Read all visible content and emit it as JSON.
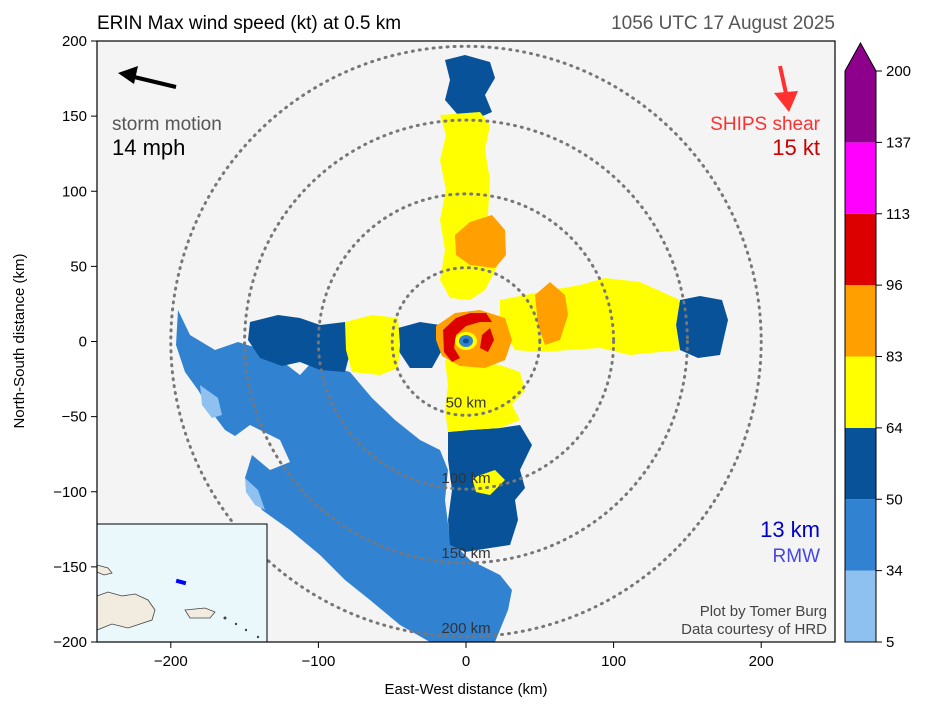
{
  "chart_data": {
    "type": "heatmap",
    "title_left": "ERIN Max wind speed (kt) at 0.5 km",
    "title_right": "1056 UTC 17 August 2025",
    "xlabel": "East-West distance (km)",
    "ylabel": "North-South distance (km)",
    "xlim": [
      -250,
      250
    ],
    "ylim": [
      -200,
      200
    ],
    "xticks": [
      -200,
      -100,
      0,
      100,
      200
    ],
    "yticks": [
      -200,
      -150,
      -100,
      -50,
      0,
      50,
      100,
      150,
      200
    ],
    "xtick_labels": [
      "−200",
      "−100",
      "0",
      "100",
      "200"
    ],
    "ytick_labels": [
      "−200",
      "−150",
      "−100",
      "−50",
      "0",
      "50",
      "100",
      "150",
      "200"
    ],
    "range_rings_km": [
      50,
      100,
      150,
      200
    ],
    "ring_labels": [
      "50 km",
      "100 km",
      "150 km",
      "200 km"
    ],
    "colorbar": {
      "levels": [
        5,
        34,
        50,
        64,
        83,
        96,
        113,
        137,
        200
      ],
      "level_labels": [
        "5",
        "34",
        "50",
        "64",
        "83",
        "96",
        "113",
        "137",
        "200"
      ],
      "colors": [
        "#8fc1f0",
        "#3282d2",
        "#08529a",
        "#ffff00",
        "#ffa000",
        "#dc0000",
        "#ff00ff",
        "#8c008c"
      ],
      "extend": "max"
    },
    "storm_motion": {
      "label": "storm motion",
      "value": "14 mph",
      "direction": "toward west-northwest"
    },
    "ships_shear": {
      "label": "SHIPS shear",
      "value": "15 kt",
      "direction": "toward south-southeast"
    },
    "rmw": {
      "value": "13 km",
      "label": "RMW"
    },
    "credits": [
      "Plot by Tomer Burg",
      "Data courtesy of HRD"
    ],
    "inset_map": {
      "region": "Puerto Rico / Hispaniola",
      "storm_marker_color": "#0000ff"
    },
    "colors": {
      "plot_background": "#f4f4f4",
      "ring": "#777777",
      "shear": "#ff3030",
      "shear_value": "#c80000",
      "rmw_value": "#0000c8",
      "rmw_label": "#4646e6"
    }
  }
}
